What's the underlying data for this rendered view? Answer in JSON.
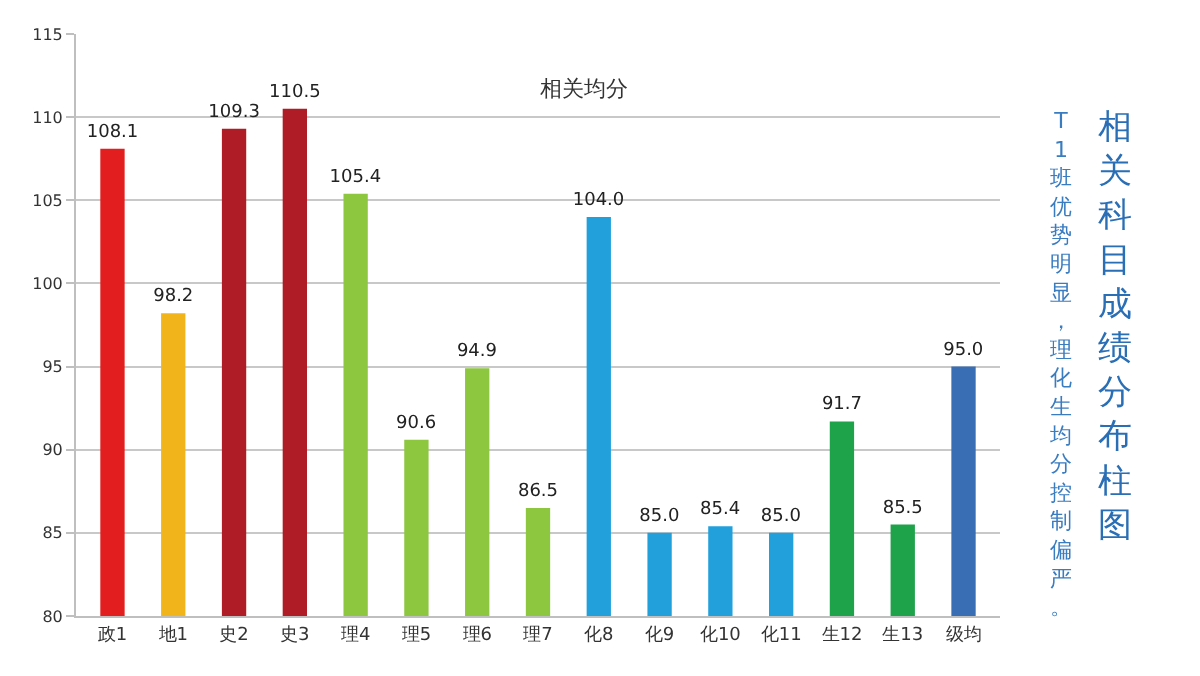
{
  "chart_data": {
    "type": "bar",
    "title": "相关均分",
    "categories": [
      "政1",
      "地1",
      "史2",
      "史3",
      "理4",
      "理5",
      "理6",
      "理7",
      "化8",
      "化9",
      "化10",
      "化11",
      "生12",
      "生13",
      "级均"
    ],
    "values": [
      108.1,
      98.2,
      109.3,
      110.5,
      105.4,
      90.6,
      94.9,
      86.5,
      104.0,
      85.0,
      85.4,
      85.0,
      91.7,
      85.5,
      95.0
    ],
    "value_labels": [
      "108.1",
      "98.2",
      "109.3",
      "110.5",
      "105.4",
      "90.6",
      "94.9",
      "86.5",
      "104.0",
      "85.0",
      "85.4",
      "85.0",
      "91.7",
      "85.5",
      "95.0"
    ],
    "colors": [
      "#e31e1e",
      "#f2b41b",
      "#b01c26",
      "#b01c26",
      "#8dc63f",
      "#8dc63f",
      "#8dc63f",
      "#8dc63f",
      "#22a0dc",
      "#22a0dc",
      "#22a0dc",
      "#22a0dc",
      "#1ea34a",
      "#1ea34a",
      "#3a6eb4"
    ],
    "ylim": [
      80,
      115
    ],
    "yticks": [
      80,
      85,
      90,
      95,
      100,
      105,
      110,
      115
    ],
    "grid": "y",
    "legend": false,
    "annotations": [
      "相关科目成绩分布柱图",
      "T1班优势明显，理化生均分控制偏严。"
    ]
  }
}
